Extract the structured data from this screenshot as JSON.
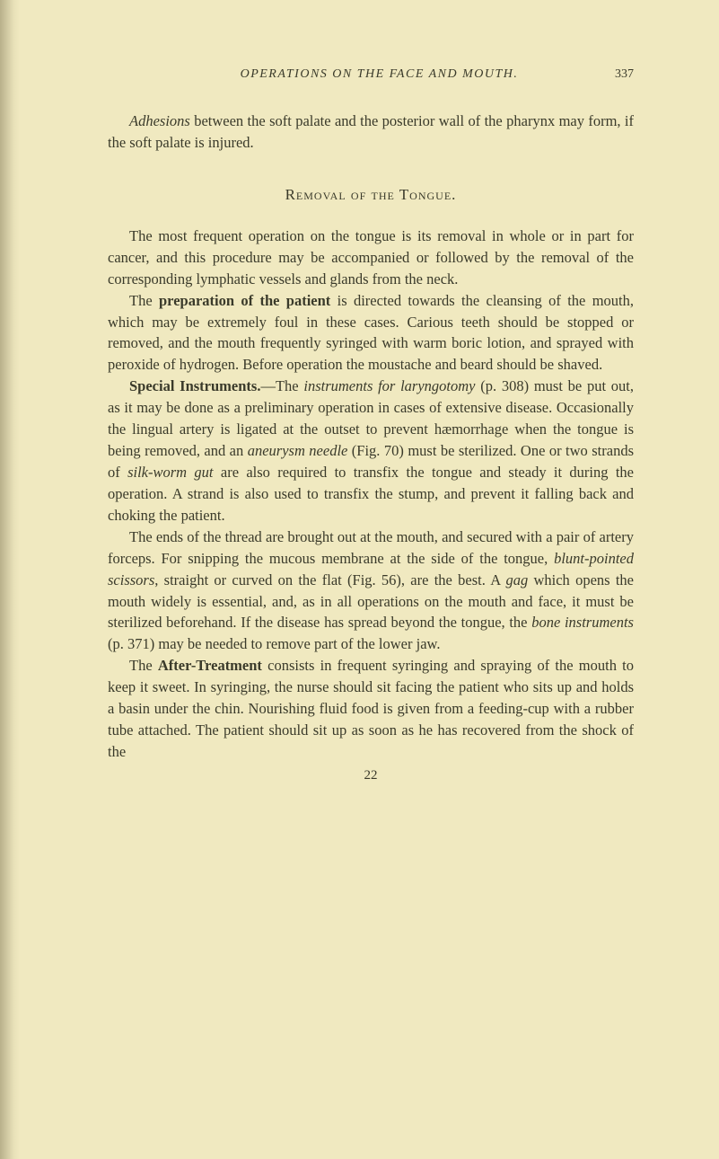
{
  "page": {
    "background_color": "#f0e9c0",
    "text_color": "#3a3a2a",
    "body_fontsize": 16.5,
    "line_height": 1.45
  },
  "header": {
    "running_title": "OPERATIONS ON THE FACE AND MOUTH.",
    "page_number": "337"
  },
  "p1": {
    "lead_ital": "Adhesions",
    "rest": " between the soft palate and the posterior wall of the pharynx may form, if the soft palate is injured."
  },
  "section": {
    "title": "Removal of the Tongue."
  },
  "p2": "The most frequent operation on the tongue is its removal in whole or in part for cancer, and this procedure may be accompanied or followed by the removal of the corresponding lymphatic vessels and glands from the neck.",
  "p3": {
    "a": "The ",
    "b_bold": "preparation of the patient",
    "c": " is directed towards the cleansing of the mouth, which may be extremely foul in these cases. Carious teeth should be stopped or removed, and the mouth frequently syringed with warm boric lotion, and sprayed with peroxide of hydrogen. Before operation the moustache and beard should be shaved."
  },
  "p4": {
    "a_bold": "Special Instruments.",
    "b": "—The ",
    "c_ital": "instruments for laryngotomy",
    "d": " (p. 308) must be put out, as it may be done as a preliminary operation in cases of extensive disease. Occasionally the lingual artery is ligated at the outset to prevent hæmorrhage when the tongue is being removed, and an ",
    "e_ital": "aneurysm needle",
    "f": " (Fig. 70) must be sterilized. One or two strands of ",
    "g_ital": "silk-worm gut",
    "h": " are also required to transfix the tongue and steady it during the operation. A strand is also used to transfix the stump, and prevent it falling back and choking the patient."
  },
  "p5": {
    "a": "The ends of the thread are brought out at the mouth, and secured with a pair of artery forceps. For snipping the mucous membrane at the side of the tongue, ",
    "b_ital": "blunt-pointed scissors",
    "c": ", straight or curved on the flat (Fig. 56), are the best. A ",
    "d_ital": "gag",
    "e": " which opens the mouth widely is essential, and, as in all operations on the mouth and face, it must be sterilized beforehand. If the disease has spread beyond the tongue, the ",
    "f_ital": "bone instruments",
    "g": " (p. 371) may be needed to remove part of the lower jaw."
  },
  "p6": {
    "a": "The ",
    "b_bold": "After-Treatment",
    "c": " consists in frequent syringing and spraying of the mouth to keep it sweet. In syringing, the nurse should sit facing the patient who sits up and holds a basin under the chin. Nourishing fluid food is given from a feeding-cup with a rubber tube attached. The patient should sit up as soon as he has recovered from the shock of the"
  },
  "footer": {
    "signature_mark": "22"
  }
}
